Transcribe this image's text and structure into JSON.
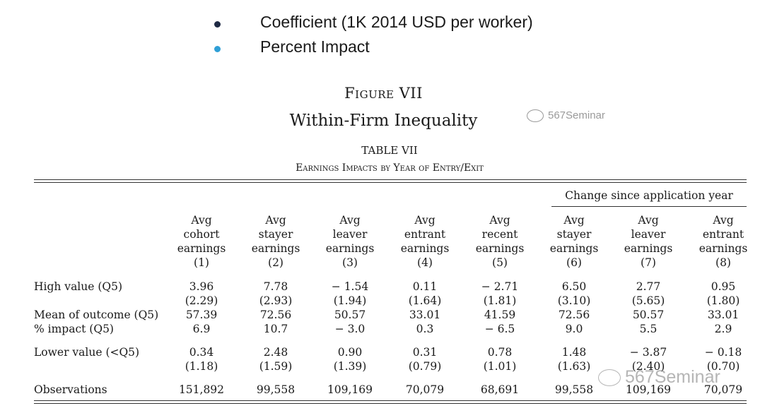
{
  "legend": [
    {
      "label": "Coefficient (1K 2014 USD per worker)",
      "color": "#1f2a44"
    },
    {
      "label": "Percent Impact",
      "color": "#2f9fd6"
    }
  ],
  "figure": {
    "label": "Figure VII",
    "title": "Within-Firm Inequality"
  },
  "watermark": {
    "top": "567Seminar",
    "bottom": "567Seminar"
  },
  "table": {
    "label": "TABLE VII",
    "title": "Earnings Impacts by Year of Entry/Exit",
    "group_header": "Change since application year",
    "columns": [
      {
        "lines": [
          "Avg",
          "cohort",
          "earnings",
          "(1)"
        ]
      },
      {
        "lines": [
          "Avg",
          "stayer",
          "earnings",
          "(2)"
        ]
      },
      {
        "lines": [
          "Avg",
          "leaver",
          "earnings",
          "(3)"
        ]
      },
      {
        "lines": [
          "Avg",
          "entrant",
          "earnings",
          "(4)"
        ]
      },
      {
        "lines": [
          "Avg",
          "recent",
          "earnings",
          "(5)"
        ]
      },
      {
        "lines": [
          "Avg",
          "stayer",
          "earnings",
          "(6)"
        ]
      },
      {
        "lines": [
          "Avg",
          "leaver",
          "earnings",
          "(7)"
        ]
      },
      {
        "lines": [
          "Avg",
          "entrant",
          "earnings",
          "(8)"
        ]
      }
    ],
    "rows": [
      {
        "label": "High value (Q5)",
        "values": [
          "3.96",
          "7.78",
          "− 1.54",
          "0.11",
          "− 2.71",
          "6.50",
          "2.77",
          "0.95"
        ]
      },
      {
        "label": "",
        "values": [
          "(2.29)",
          "(2.93)",
          "(1.94)",
          "(1.64)",
          "(1.81)",
          "(3.10)",
          "(5.65)",
          "(1.80)"
        ]
      },
      {
        "label": "Mean of outcome (Q5)",
        "values": [
          "57.39",
          "72.56",
          "50.57",
          "33.01",
          "41.59",
          "72.56",
          "50.57",
          "33.01"
        ]
      },
      {
        "label": "% impact (Q5)",
        "values": [
          "6.9",
          "10.7",
          "− 3.0",
          "0.3",
          "− 6.5",
          "9.0",
          "5.5",
          "2.9"
        ]
      },
      {
        "label": "Lower value (<Q5)",
        "values": [
          "0.34",
          "2.48",
          "0.90",
          "0.31",
          "0.78",
          "1.48",
          "− 3.87",
          "− 0.18"
        ]
      },
      {
        "label": "",
        "values": [
          "(1.18)",
          "(1.59)",
          "(1.39)",
          "(0.79)",
          "(1.01)",
          "(1.63)",
          "(2.40)",
          "(0.70)"
        ]
      },
      {
        "label": "Observations",
        "values": [
          "151,892",
          "99,558",
          "109,169",
          "70,079",
          "68,691",
          "99,558",
          "109,169",
          "70,079"
        ]
      }
    ]
  }
}
